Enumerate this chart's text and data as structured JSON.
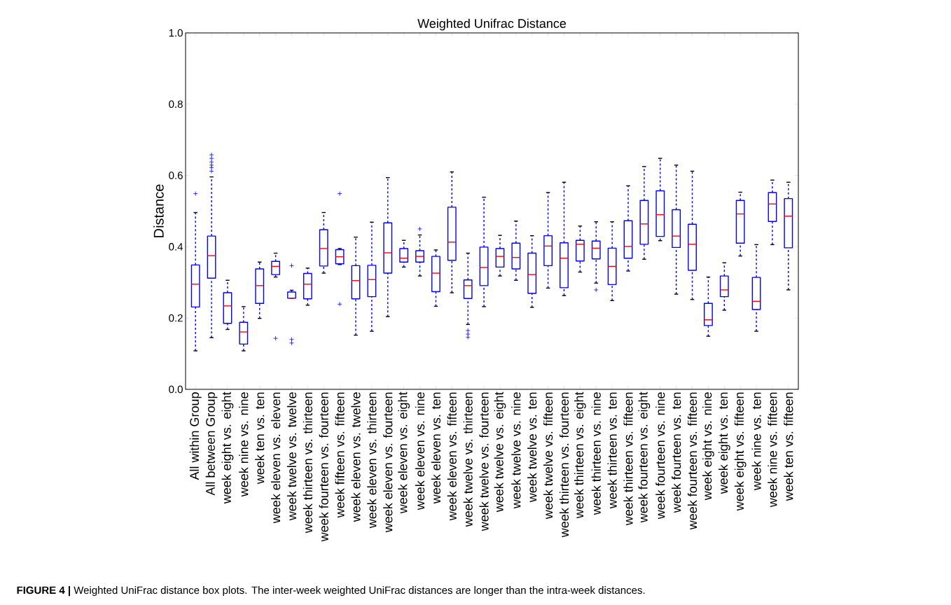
{
  "chart_data": {
    "type": "box",
    "title": "Weighted Unifrac Distance",
    "ylabel": "Distance",
    "annotations": [
      "**FIGURE 4 |** Weighted UniFrac distance box plots. The inter-week weighted UniFrac distances are longer than the intra-week distances."
    ],
    "categories": [
      "All within Group",
      "All between Group",
      "week eight vs. eight",
      "week nine vs. nine",
      "week ten vs. ten",
      "week eleven vs. eleven",
      "week twelve vs. twelve",
      "week thirteen vs. thirteen",
      "week fourteen vs. fourteen",
      "week fifteen vs. fifteen",
      "week eleven vs. twelve",
      "week eleven vs. thirteen",
      "week eleven vs. fourteen",
      "week eleven vs. eight",
      "week eleven vs. nine",
      "week eleven vs. ten",
      "week eleven vs. fifteen",
      "week twelve vs. thirteen",
      "week twelve vs. fourteen",
      "week twelve vs. eight",
      "week twelve vs. nine",
      "week twelve vs. ten",
      "week twelve vs. fifteen",
      "week thirteen vs. fourteen",
      "week thirteen vs. eight",
      "week thirteen vs. nine",
      "week thirteen vs. ten",
      "week thirteen vs. fifteen",
      "week fourteen vs. eight",
      "week fourteen vs. nine",
      "week fourteen vs. ten",
      "week fourteen vs. fifteen",
      "week eight vs. nine",
      "week eight vs. ten",
      "week eight vs. fifteen",
      "week nine vs. ten",
      "week nine vs. fifteen",
      "week ten vs. fifteen"
    ],
    "ylim": [
      0,
      1
    ],
    "yticks": [
      {
        "value": 0,
        "label": "0.0"
      },
      {
        "value": 0.2,
        "label": "0.2"
      },
      {
        "value": 0.4,
        "label": "0.4"
      },
      {
        "value": 0.6,
        "label": "0.6"
      },
      {
        "value": 0.8,
        "label": "0.8"
      },
      {
        "value": 1,
        "label": "1.0"
      }
    ],
    "series": [
      {
        "color": "#0000ff",
        "boxes": [
          {
            "low": 0.108,
            "q1": 0.231,
            "median": 0.295,
            "q3": 0.349,
            "high": 0.496,
            "outliers": [
              0.549
            ]
          },
          {
            "low": 0.145,
            "q1": 0.312,
            "median": 0.375,
            "q3": 0.43,
            "high": 0.596,
            "outliers": [
              0.612,
              0.622,
              0.629,
              0.638,
              0.648,
              0.658
            ]
          },
          {
            "low": 0.168,
            "q1": 0.185,
            "median": 0.234,
            "q3": 0.271,
            "high": 0.306
          },
          {
            "low": 0.108,
            "q1": 0.127,
            "median": 0.161,
            "q3": 0.188,
            "high": 0.232
          },
          {
            "low": 0.199,
            "q1": 0.241,
            "median": 0.291,
            "q3": 0.338,
            "high": 0.357
          },
          {
            "low": 0.315,
            "q1": 0.322,
            "median": 0.345,
            "q3": 0.359,
            "high": 0.382,
            "outliers": [
              0.143
            ]
          },
          {
            "low": 0.256,
            "q1": 0.256,
            "median": 0.256,
            "q3": 0.273,
            "high": 0.278,
            "outliers": [
              0.347,
              0.14,
              0.13
            ]
          },
          {
            "low": 0.236,
            "q1": 0.254,
            "median": 0.295,
            "q3": 0.325,
            "high": 0.34
          },
          {
            "low": 0.326,
            "q1": 0.346,
            "median": 0.395,
            "q3": 0.448,
            "high": 0.496
          },
          {
            "low": 0.35,
            "q1": 0.352,
            "median": 0.372,
            "q3": 0.392,
            "high": 0.395,
            "outliers": [
              0.549,
              0.239
            ]
          },
          {
            "low": 0.152,
            "q1": 0.254,
            "median": 0.305,
            "q3": 0.347,
            "high": 0.427
          },
          {
            "low": 0.163,
            "q1": 0.26,
            "median": 0.308,
            "q3": 0.348,
            "high": 0.469
          },
          {
            "low": 0.204,
            "q1": 0.326,
            "median": 0.383,
            "q3": 0.467,
            "high": 0.594
          },
          {
            "low": 0.343,
            "q1": 0.357,
            "median": 0.368,
            "q3": 0.395,
            "high": 0.418
          },
          {
            "low": 0.318,
            "q1": 0.357,
            "median": 0.373,
            "q3": 0.389,
            "high": 0.433,
            "outliers": [
              0.45
            ]
          },
          {
            "low": 0.233,
            "q1": 0.274,
            "median": 0.326,
            "q3": 0.373,
            "high": 0.391
          },
          {
            "low": 0.271,
            "q1": 0.362,
            "median": 0.413,
            "q3": 0.511,
            "high": 0.61
          },
          {
            "low": 0.182,
            "q1": 0.255,
            "median": 0.291,
            "q3": 0.307,
            "high": 0.382,
            "outliers": [
              0.165,
              0.155,
              0.146
            ]
          },
          {
            "low": 0.232,
            "q1": 0.291,
            "median": 0.342,
            "q3": 0.399,
            "high": 0.539
          },
          {
            "low": 0.318,
            "q1": 0.343,
            "median": 0.373,
            "q3": 0.395,
            "high": 0.432
          },
          {
            "low": 0.306,
            "q1": 0.338,
            "median": 0.37,
            "q3": 0.41,
            "high": 0.472
          },
          {
            "low": 0.23,
            "q1": 0.269,
            "median": 0.322,
            "q3": 0.382,
            "high": 0.431
          },
          {
            "low": 0.284,
            "q1": 0.347,
            "median": 0.402,
            "q3": 0.431,
            "high": 0.552
          },
          {
            "low": 0.263,
            "q1": 0.285,
            "median": 0.368,
            "q3": 0.411,
            "high": 0.581
          },
          {
            "low": 0.329,
            "q1": 0.36,
            "median": 0.407,
            "q3": 0.418,
            "high": 0.458
          },
          {
            "low": 0.298,
            "q1": 0.366,
            "median": 0.396,
            "q3": 0.416,
            "high": 0.47,
            "outliers": [
              0.279
            ]
          },
          {
            "low": 0.249,
            "q1": 0.294,
            "median": 0.345,
            "q3": 0.396,
            "high": 0.47
          },
          {
            "low": 0.332,
            "q1": 0.368,
            "median": 0.401,
            "q3": 0.473,
            "high": 0.571
          },
          {
            "low": 0.365,
            "q1": 0.407,
            "median": 0.464,
            "q3": 0.53,
            "high": 0.625
          },
          {
            "low": 0.417,
            "q1": 0.429,
            "median": 0.49,
            "q3": 0.557,
            "high": 0.648
          },
          {
            "low": 0.267,
            "q1": 0.398,
            "median": 0.43,
            "q3": 0.504,
            "high": 0.629
          },
          {
            "low": 0.252,
            "q1": 0.334,
            "median": 0.407,
            "q3": 0.463,
            "high": 0.612
          },
          {
            "low": 0.149,
            "q1": 0.179,
            "median": 0.195,
            "q3": 0.241,
            "high": 0.315
          },
          {
            "low": 0.222,
            "q1": 0.26,
            "median": 0.279,
            "q3": 0.318,
            "high": 0.355
          },
          {
            "low": 0.374,
            "q1": 0.41,
            "median": 0.492,
            "q3": 0.53,
            "high": 0.553
          },
          {
            "low": 0.163,
            "q1": 0.224,
            "median": 0.247,
            "q3": 0.314,
            "high": 0.406
          },
          {
            "low": 0.406,
            "q1": 0.471,
            "median": 0.52,
            "q3": 0.552,
            "high": 0.587
          },
          {
            "low": 0.279,
            "q1": 0.397,
            "median": 0.486,
            "q3": 0.535,
            "high": 0.581
          }
        ]
      }
    ]
  }
}
